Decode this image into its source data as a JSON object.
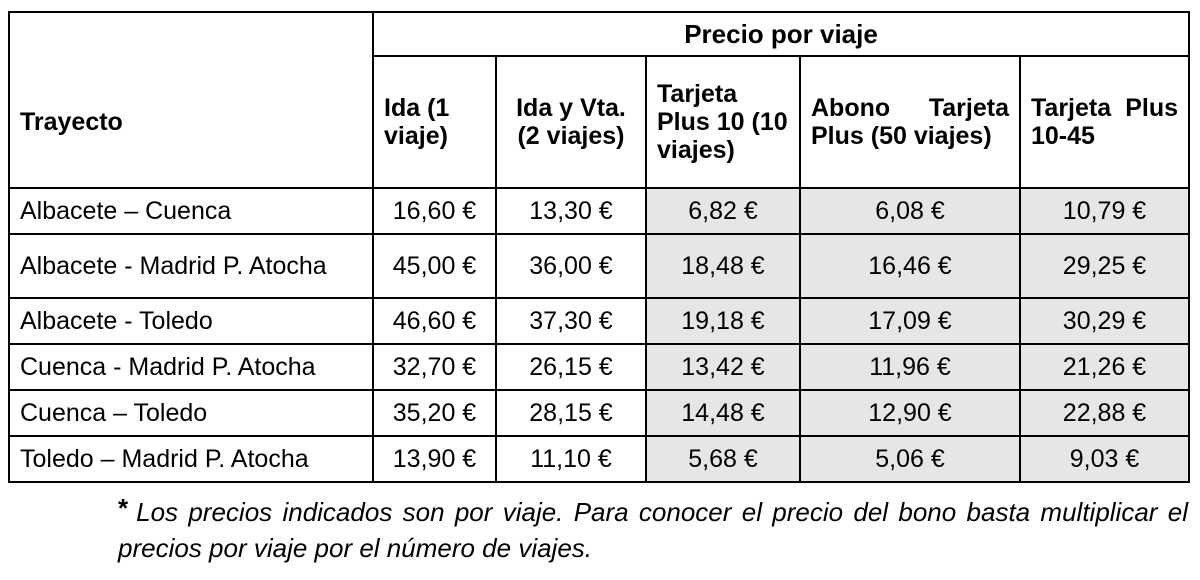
{
  "table": {
    "group_header": "Precio por viaje",
    "headers": [
      "Trayecto",
      "Ida (1 viaje)",
      "Ida y Vta. (2 viajes)",
      "Tarjeta Plus 10 (10 viajes)",
      "Abono Tarjeta Plus (50 viajes)",
      "Tarjeta Plus 10-45"
    ],
    "rows": [
      {
        "route": "Albacete – Cuenca",
        "ida": "16,60 €",
        "ida_vta": "13,30 €",
        "plus10": "6,82 €",
        "abono": "6,08 €",
        "plus1045": "10,79 €"
      },
      {
        "route": "Albacete - Madrid P. Atocha",
        "ida": "45,00 €",
        "ida_vta": "36,00 €",
        "plus10": "18,48 €",
        "abono": "16,46 €",
        "plus1045": "29,25 €"
      },
      {
        "route": "Albacete - Toledo",
        "ida": "46,60 €",
        "ida_vta": "37,30 €",
        "plus10": "19,18 €",
        "abono": "17,09 €",
        "plus1045": "30,29 €"
      },
      {
        "route": "Cuenca - Madrid P. Atocha",
        "ida": "32,70 €",
        "ida_vta": "26,15 €",
        "plus10": "13,42 €",
        "abono": "11,96 €",
        "plus1045": "21,26 €"
      },
      {
        "route": "Cuenca – Toledo",
        "ida": "35,20 €",
        "ida_vta": "28,15 €",
        "plus10": "14,48 €",
        "abono": "12,90 €",
        "plus1045": "22,88 €"
      },
      {
        "route": "Toledo – Madrid P. Atocha",
        "ida": "13,90 €",
        "ida_vta": "11,10 €",
        "plus10": "5,68 €",
        "abono": "5,06 €",
        "plus1045": "9,03 €"
      }
    ]
  },
  "footnote": {
    "marker": "*",
    "text": "Los precios indicados son por viaje. Para conocer el precio del bono basta multiplicar el precios por viaje por el número de viajes."
  },
  "colors": {
    "shade": "#e6e6e6",
    "border": "#000000"
  }
}
